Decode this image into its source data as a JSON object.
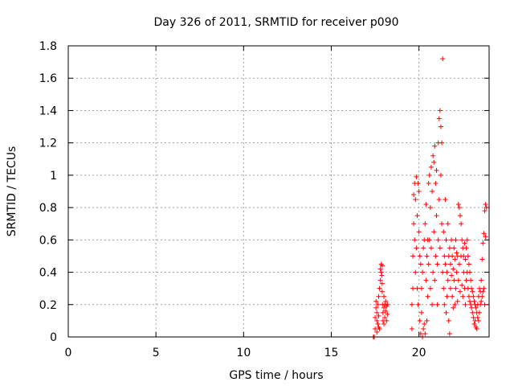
{
  "chart_data": {
    "type": "scatter",
    "title": "Day 326 of 2011, SRMTID for receiver p090",
    "xlabel": "GPS time / hours",
    "ylabel": "SRMTID / TECUs",
    "xlim": [
      0,
      24
    ],
    "ylim": [
      0,
      1.8
    ],
    "xticks": [
      0,
      5,
      10,
      15,
      20
    ],
    "yticks": [
      0,
      0.2,
      0.4,
      0.6,
      0.8,
      1,
      1.2,
      1.4,
      1.6,
      1.8
    ],
    "ytick_labels": [
      "0",
      "0.2",
      "0.4",
      "0.6",
      "0.8",
      "1",
      "1.2",
      "1.4",
      "1.6",
      "1.8"
    ],
    "grid": true,
    "marker": "+",
    "color": "#ff0000",
    "series": [
      {
        "name": "SRMTID",
        "points": [
          [
            17.4,
            0.0
          ],
          [
            17.45,
            0.0
          ],
          [
            17.5,
            0.05
          ],
          [
            17.5,
            0.12
          ],
          [
            17.55,
            0.18
          ],
          [
            17.55,
            0.22
          ],
          [
            17.6,
            0.15
          ],
          [
            17.6,
            0.1
          ],
          [
            17.65,
            0.08
          ],
          [
            17.65,
            0.2
          ],
          [
            17.7,
            0.25
          ],
          [
            17.7,
            0.13
          ],
          [
            17.75,
            0.05
          ],
          [
            17.75,
            0.3
          ],
          [
            17.8,
            0.35
          ],
          [
            17.8,
            0.42
          ],
          [
            17.85,
            0.45
          ],
          [
            17.85,
            0.4
          ],
          [
            17.88,
            0.38
          ],
          [
            17.9,
            0.44
          ],
          [
            17.9,
            0.33
          ],
          [
            17.92,
            0.2
          ],
          [
            17.95,
            0.15
          ],
          [
            17.95,
            0.1
          ],
          [
            18.0,
            0.18
          ],
          [
            18.0,
            0.25
          ],
          [
            18.05,
            0.12
          ],
          [
            18.05,
            0.2
          ],
          [
            18.1,
            0.22
          ],
          [
            18.1,
            0.16
          ],
          [
            18.15,
            0.1
          ],
          [
            18.15,
            0.19
          ],
          [
            18.2,
            0.2
          ],
          [
            18.2,
            0.14
          ],
          [
            17.6,
            0.03
          ],
          [
            17.7,
            0.06
          ],
          [
            17.9,
            0.28
          ],
          [
            18.0,
            0.08
          ],
          [
            19.6,
            0.05
          ],
          [
            19.6,
            0.2
          ],
          [
            19.65,
            0.3
          ],
          [
            19.65,
            0.5
          ],
          [
            19.7,
            0.88
          ],
          [
            19.7,
            0.7
          ],
          [
            19.75,
            0.95
          ],
          [
            19.75,
            0.6
          ],
          [
            19.8,
            0.85
          ],
          [
            19.8,
            0.4
          ],
          [
            19.85,
            0.99
          ],
          [
            19.85,
            0.55
          ],
          [
            19.9,
            0.75
          ],
          [
            19.9,
            0.3
          ],
          [
            19.95,
            0.95
          ],
          [
            19.95,
            0.2
          ],
          [
            20.0,
            0.9
          ],
          [
            20.0,
            0.65
          ],
          [
            20.05,
            0.5
          ],
          [
            20.05,
            0.1
          ],
          [
            20.1,
            0.45
          ],
          [
            20.1,
            0.02
          ],
          [
            20.15,
            0.3
          ],
          [
            20.15,
            0.15
          ],
          [
            20.2,
            0.0
          ],
          [
            20.2,
            0.4
          ],
          [
            20.25,
            0.55
          ],
          [
            20.25,
            0.05
          ],
          [
            20.3,
            0.08
          ],
          [
            20.3,
            0.6
          ],
          [
            20.35,
            0.7
          ],
          [
            20.35,
            0.02
          ],
          [
            20.4,
            0.82
          ],
          [
            20.4,
            0.35
          ],
          [
            20.45,
            0.1
          ],
          [
            20.45,
            0.5
          ],
          [
            20.5,
            0.6
          ],
          [
            20.5,
            0.25
          ],
          [
            20.55,
            0.95
          ],
          [
            20.55,
            0.45
          ],
          [
            20.6,
            1.0
          ],
          [
            20.6,
            0.6
          ],
          [
            20.65,
            0.8
          ],
          [
            20.65,
            0.3
          ],
          [
            20.7,
            1.05
          ],
          [
            20.7,
            0.55
          ],
          [
            20.75,
            0.9
          ],
          [
            20.75,
            0.2
          ],
          [
            20.8,
            1.12
          ],
          [
            20.8,
            0.4
          ],
          [
            20.85,
            1.08
          ],
          [
            20.85,
            0.65
          ],
          [
            20.9,
            1.18
          ],
          [
            20.9,
            0.35
          ],
          [
            20.95,
            0.95
          ],
          [
            20.95,
            0.5
          ],
          [
            21.0,
            1.03
          ],
          [
            21.0,
            0.75
          ],
          [
            21.05,
            0.45
          ],
          [
            21.05,
            0.2
          ],
          [
            21.1,
            1.2
          ],
          [
            21.1,
            0.6
          ],
          [
            21.15,
            1.35
          ],
          [
            21.15,
            0.85
          ],
          [
            21.2,
            1.4
          ],
          [
            21.2,
            0.55
          ],
          [
            21.25,
            1.3
          ],
          [
            21.25,
            1.0
          ],
          [
            21.3,
            1.2
          ],
          [
            21.3,
            0.7
          ],
          [
            21.35,
            1.72
          ],
          [
            21.35,
            0.4
          ],
          [
            21.4,
            0.65
          ],
          [
            21.4,
            0.3
          ],
          [
            21.45,
            0.5
          ],
          [
            21.45,
            0.2
          ],
          [
            21.5,
            0.85
          ],
          [
            21.5,
            0.45
          ],
          [
            21.55,
            0.6
          ],
          [
            21.55,
            0.15
          ],
          [
            21.6,
            0.4
          ],
          [
            21.6,
            0.25
          ],
          [
            21.65,
            0.7
          ],
          [
            21.65,
            0.35
          ],
          [
            21.7,
            0.5
          ],
          [
            21.7,
            0.1
          ],
          [
            21.75,
            0.55
          ],
          [
            21.75,
            0.02
          ],
          [
            21.8,
            0.45
          ],
          [
            21.8,
            0.3
          ],
          [
            21.85,
            0.6
          ],
          [
            21.85,
            0.38
          ],
          [
            21.9,
            0.5
          ],
          [
            21.9,
            0.25
          ],
          [
            21.95,
            0.42
          ],
          [
            21.95,
            0.18
          ],
          [
            22.0,
            0.55
          ],
          [
            22.0,
            0.35
          ],
          [
            22.05,
            0.48
          ],
          [
            22.05,
            0.2
          ],
          [
            22.1,
            0.6
          ],
          [
            22.1,
            0.3
          ],
          [
            22.15,
            0.52
          ],
          [
            22.15,
            0.4
          ],
          [
            22.2,
            0.5
          ],
          [
            22.2,
            0.22
          ],
          [
            22.25,
            0.82
          ],
          [
            22.25,
            0.35
          ],
          [
            22.3,
            0.8
          ],
          [
            22.3,
            0.45
          ],
          [
            22.35,
            0.75
          ],
          [
            22.35,
            0.28
          ],
          [
            22.4,
            0.7
          ],
          [
            22.4,
            0.5
          ],
          [
            22.45,
            0.6
          ],
          [
            22.45,
            0.32
          ],
          [
            22.5,
            0.55
          ],
          [
            22.5,
            0.25
          ],
          [
            22.55,
            0.5
          ],
          [
            22.55,
            0.4
          ],
          [
            22.6,
            0.58
          ],
          [
            22.6,
            0.3
          ],
          [
            22.65,
            0.48
          ],
          [
            22.65,
            0.2
          ],
          [
            22.7,
            0.55
          ],
          [
            22.7,
            0.35
          ],
          [
            22.75,
            0.6
          ],
          [
            22.75,
            0.4
          ],
          [
            22.8,
            0.5
          ],
          [
            22.8,
            0.3
          ],
          [
            22.85,
            0.45
          ],
          [
            22.85,
            0.25
          ],
          [
            22.9,
            0.4
          ],
          [
            22.9,
            0.22
          ],
          [
            22.95,
            0.35
          ],
          [
            22.95,
            0.2
          ],
          [
            23.0,
            0.3
          ],
          [
            23.0,
            0.18
          ],
          [
            23.05,
            0.28
          ],
          [
            23.05,
            0.15
          ],
          [
            23.1,
            0.25
          ],
          [
            23.1,
            0.12
          ],
          [
            23.15,
            0.22
          ],
          [
            23.15,
            0.08
          ],
          [
            23.2,
            0.2
          ],
          [
            23.2,
            0.1
          ],
          [
            23.25,
            0.18
          ],
          [
            23.25,
            0.06
          ],
          [
            23.3,
            0.15
          ],
          [
            23.3,
            0.05
          ],
          [
            23.35,
            0.12
          ],
          [
            23.35,
            0.2
          ],
          [
            23.4,
            0.25
          ],
          [
            23.4,
            0.1
          ],
          [
            23.45,
            0.3
          ],
          [
            23.45,
            0.15
          ],
          [
            23.5,
            0.28
          ],
          [
            23.5,
            0.2
          ],
          [
            23.55,
            0.35
          ],
          [
            23.55,
            0.22
          ],
          [
            23.6,
            0.48
          ],
          [
            23.6,
            0.25
          ],
          [
            23.65,
            0.58
          ],
          [
            23.65,
            0.28
          ],
          [
            23.7,
            0.64
          ],
          [
            23.7,
            0.3
          ],
          [
            23.75,
            0.78
          ],
          [
            23.75,
            0.2
          ],
          [
            23.8,
            0.82
          ],
          [
            23.8,
            0.62
          ],
          [
            23.85,
            0.8
          ]
        ]
      }
    ]
  }
}
